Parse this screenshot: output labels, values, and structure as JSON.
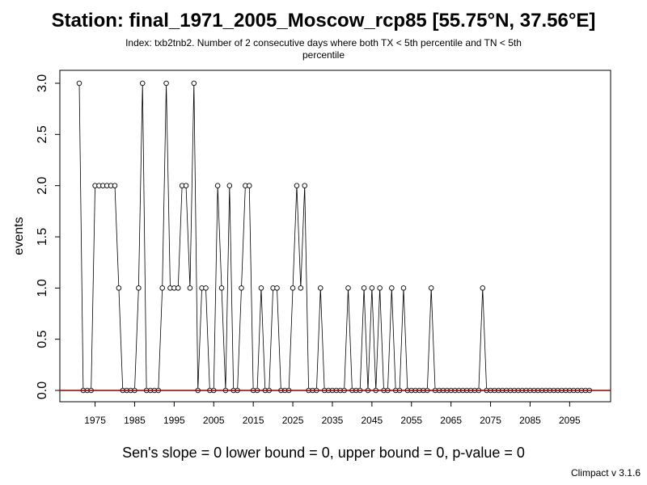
{
  "chart_data": {
    "type": "scatter",
    "title": "Station: final_1971_2005_Moscow_rcp85 [55.75°N, 37.56°E]",
    "subtitle": "Index: txb2tnb2. Number of 2 consecutive days where both TX < 5th percentile and TN < 5th percentile",
    "ylabel": "events",
    "xlabel": "",
    "xlim": [
      1970,
      2100
    ],
    "ylim": [
      0,
      3
    ],
    "x_ticks": [
      1975,
      1985,
      1995,
      2005,
      2015,
      2025,
      2035,
      2045,
      2055,
      2065,
      2075,
      2085,
      2095
    ],
    "y_ticks": [
      "0.0",
      "0.5",
      "1.0",
      "1.5",
      "2.0",
      "2.5",
      "3.0"
    ],
    "grid": false,
    "trend_line": {
      "value": 0,
      "color": "#8b0000"
    },
    "series": [
      {
        "x": [
          1971,
          1972,
          1973,
          1974,
          1975,
          1976,
          1977,
          1978,
          1979,
          1980,
          1981,
          1982,
          1983,
          1984,
          1985,
          1986,
          1987,
          1988,
          1989,
          1990,
          1991,
          1992,
          1993,
          1994,
          1995,
          1996,
          1997,
          1998,
          1999,
          2000,
          2001,
          2002,
          2003,
          2004,
          2005,
          2006,
          2007,
          2008,
          2009,
          2010,
          2011,
          2012,
          2013,
          2014,
          2015,
          2016,
          2017,
          2018,
          2019,
          2020,
          2021,
          2022,
          2023,
          2024,
          2025,
          2026,
          2027,
          2028,
          2029,
          2030,
          2031,
          2032,
          2033,
          2034,
          2035,
          2036,
          2037,
          2038,
          2039,
          2040,
          2041,
          2042,
          2043,
          2044,
          2045,
          2046,
          2047,
          2048,
          2049,
          2050,
          2051,
          2052,
          2053,
          2054,
          2055,
          2056,
          2057,
          2058,
          2059,
          2060,
          2061,
          2062,
          2063,
          2064,
          2065,
          2066,
          2067,
          2068,
          2069,
          2070,
          2071,
          2072,
          2073,
          2074,
          2075,
          2076,
          2077,
          2078,
          2079,
          2080,
          2081,
          2082,
          2083,
          2084,
          2085,
          2086,
          2087,
          2088,
          2089,
          2090,
          2091,
          2092,
          2093,
          2094,
          2095,
          2096,
          2097,
          2098,
          2099,
          2100
        ],
        "values": [
          3,
          0,
          0,
          0,
          2,
          2,
          2,
          2,
          2,
          2,
          1,
          0,
          0,
          0,
          0,
          1,
          3,
          0,
          0,
          0,
          0,
          1,
          3,
          1,
          1,
          1,
          2,
          2,
          1,
          3,
          0,
          1,
          1,
          0,
          0,
          2,
          1,
          0,
          2,
          0,
          0,
          1,
          2,
          2,
          0,
          0,
          1,
          0,
          0,
          1,
          1,
          0,
          0,
          0,
          1,
          2,
          1,
          2,
          0,
          0,
          0,
          1,
          0,
          0,
          0,
          0,
          0,
          0,
          1,
          0,
          0,
          0,
          1,
          0,
          1,
          0,
          1,
          0,
          0,
          1,
          0,
          0,
          1,
          0,
          0,
          0,
          0,
          0,
          0,
          1,
          0,
          0,
          0,
          0,
          0,
          0,
          0,
          0,
          0,
          0,
          0,
          0,
          1,
          0,
          0,
          0,
          0,
          0,
          0,
          0,
          0,
          0,
          0,
          0,
          0,
          0,
          0,
          0,
          0,
          0,
          0,
          0,
          0,
          0,
          0,
          0,
          0,
          0,
          0,
          0
        ]
      }
    ]
  },
  "stats_text": "Sen's slope = 0   lower bound = 0,   upper bound = 0,   p-value = 0",
  "version_text": "Climpact v 3.1.6"
}
